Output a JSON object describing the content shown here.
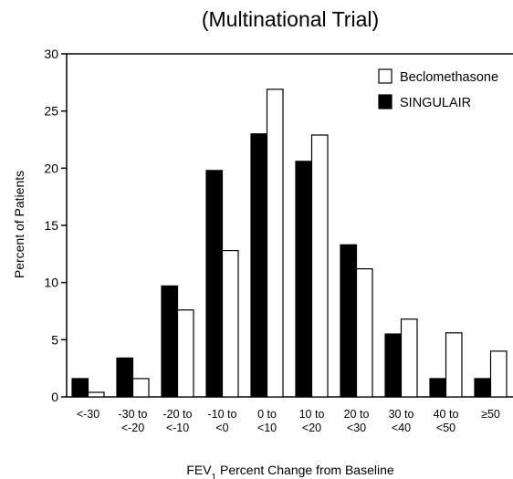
{
  "chart_data": {
    "type": "bar",
    "title": "(Multinational Trial)",
    "xlabel": {
      "prefix": "FEV",
      "subscript": "1",
      "suffix": " Percent Change from Baseline"
    },
    "ylabel": "Percent of Patients",
    "ylim": [
      0,
      30
    ],
    "yticks": [
      0,
      5,
      10,
      15,
      20,
      25,
      30
    ],
    "grid": false,
    "legend_position": "top-right",
    "categories": [
      [
        "<-30"
      ],
      [
        "-30 to",
        "<-20"
      ],
      [
        "-20 to",
        "<-10"
      ],
      [
        "-10 to",
        "<0"
      ],
      [
        "0 to",
        "<10"
      ],
      [
        "10 to",
        "<20"
      ],
      [
        "20 to",
        "<30"
      ],
      [
        "30 to",
        "<40"
      ],
      [
        "40 to",
        "<50"
      ],
      [
        "≥50"
      ]
    ],
    "series": [
      {
        "name": "SINGULAIR",
        "color": "#000000",
        "values": [
          1.6,
          3.4,
          9.7,
          19.8,
          23.0,
          20.6,
          13.3,
          5.5,
          1.6,
          1.6
        ]
      },
      {
        "name": "Beclomethasone",
        "color": "#ffffff",
        "values": [
          0.4,
          1.6,
          7.6,
          12.8,
          26.9,
          22.9,
          11.2,
          6.8,
          5.6,
          4.0
        ]
      }
    ],
    "legend_order": [
      1,
      0
    ]
  }
}
